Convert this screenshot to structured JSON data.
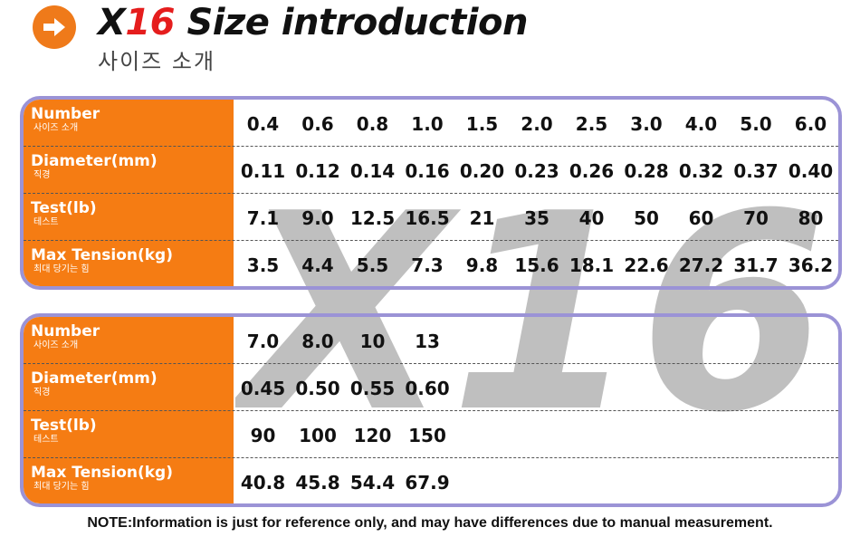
{
  "header": {
    "title_prefix": "X",
    "title_number": "16",
    "title_suffix": " Size introduction",
    "subtitle": "사이즈 소개",
    "watermark_text": "X16",
    "accent_color": "#f57c13",
    "title_accent_color": "#e51d1d",
    "frame_color": "#9b93d6"
  },
  "table1": {
    "rows": [
      {
        "label": "Number",
        "label_ko": "사이즈 소개",
        "values": [
          "0.4",
          "0.6",
          "0.8",
          "1.0",
          "1.5",
          "2.0",
          "2.5",
          "3.0",
          "4.0",
          "5.0",
          "6.0"
        ]
      },
      {
        "label": "Diameter(mm)",
        "label_ko": "직경",
        "values": [
          "0.11",
          "0.12",
          "0.14",
          "0.16",
          "0.20",
          "0.23",
          "0.26",
          "0.28",
          "0.32",
          "0.37",
          "0.40"
        ]
      },
      {
        "label": "Test(lb)",
        "label_ko": "테스트",
        "values": [
          "7.1",
          "9.0",
          "12.5",
          "16.5",
          "21",
          "35",
          "40",
          "50",
          "60",
          "70",
          "80"
        ]
      },
      {
        "label": "Max Tension(kg)",
        "label_ko": "최대 당기는 힘",
        "values": [
          "3.5",
          "4.4",
          "5.5",
          "7.3",
          "9.8",
          "15.6",
          "18.1",
          "22.6",
          "27.2",
          "31.7",
          "36.2"
        ]
      }
    ]
  },
  "table2": {
    "rows": [
      {
        "label": "Number",
        "label_ko": "사이즈 소개",
        "values": [
          "7.0",
          "8.0",
          "10",
          "13"
        ]
      },
      {
        "label": "Diameter(mm)",
        "label_ko": "직경",
        "values": [
          "0.45",
          "0.50",
          "0.55",
          "0.60"
        ]
      },
      {
        "label": "Test(lb)",
        "label_ko": "테스트",
        "values": [
          "90",
          "100",
          "120",
          "150"
        ]
      },
      {
        "label": "Max Tension(kg)",
        "label_ko": "최대 당기는 힘",
        "values": [
          "40.8",
          "45.8",
          "54.4",
          "67.9"
        ]
      }
    ]
  },
  "note": "NOTE:Information is just for reference only, and may have differences due to manual measurement."
}
